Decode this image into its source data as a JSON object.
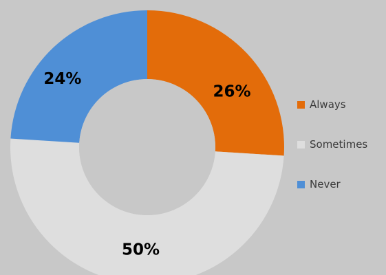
{
  "chart_data": {
    "type": "pie",
    "donut": true,
    "title": "",
    "categories": [
      "Always",
      "Sometimes",
      "Never"
    ],
    "values": [
      26,
      50,
      24
    ],
    "labels": [
      "26%",
      "50%",
      "24%"
    ],
    "colors": [
      "#e36c0a",
      "#dedede",
      "#4f8fd6"
    ],
    "start_angle_deg": 0,
    "direction": "clockwise",
    "legend_position": "right"
  },
  "background_color": "#c8c8c8"
}
